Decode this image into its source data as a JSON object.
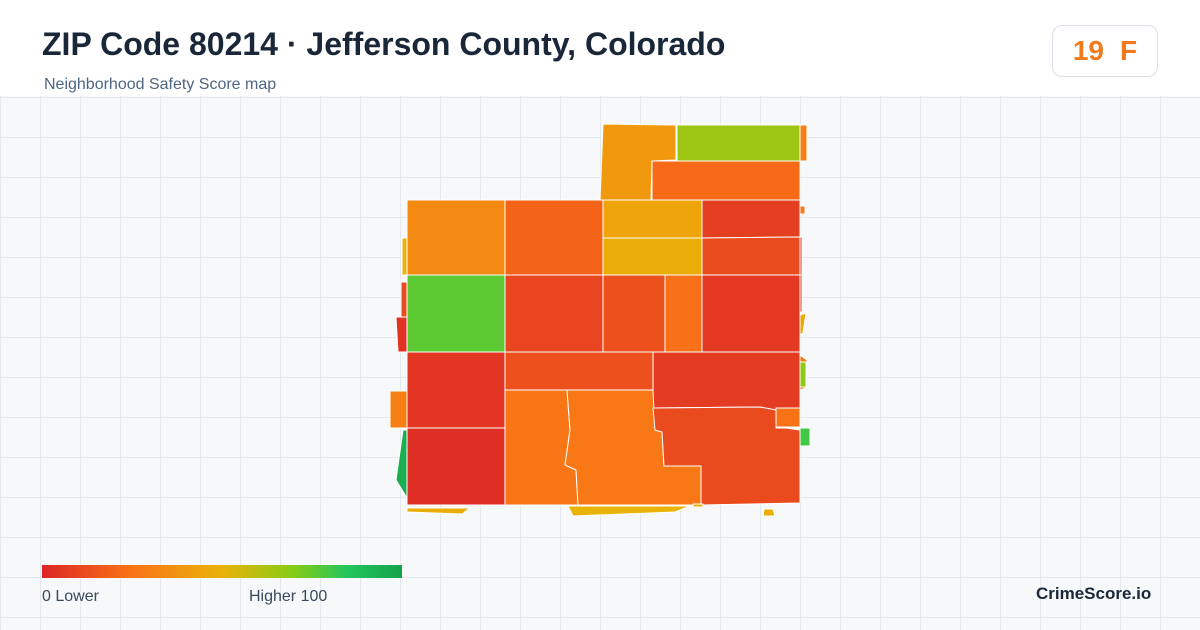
{
  "header": {
    "title": "ZIP Code 80214 · Jefferson County, Colorado",
    "subtitle": "Neighborhood Safety Score map"
  },
  "score_badge": {
    "score": "19",
    "grade": "F",
    "color": "#f07a1c"
  },
  "map": {
    "tiles": [
      {
        "id": "n1",
        "score": 40
      },
      {
        "id": "n2",
        "score": 65
      },
      {
        "id": "n3",
        "score": 22
      },
      {
        "id": "n4",
        "score": 34
      },
      {
        "id": "n5",
        "score": 20
      },
      {
        "id": "n6",
        "score": 44
      },
      {
        "id": "n7",
        "score": 8
      },
      {
        "id": "n8",
        "score": 48
      },
      {
        "id": "n9",
        "score": 12
      },
      {
        "id": "n10",
        "score": 76
      },
      {
        "id": "n11",
        "score": 10
      },
      {
        "id": "n12",
        "score": 14
      },
      {
        "id": "n13",
        "score": 24
      },
      {
        "id": "n14",
        "score": 6
      },
      {
        "id": "n15",
        "score": 5
      },
      {
        "id": "n16",
        "score": 14
      },
      {
        "id": "n17",
        "score": 7
      },
      {
        "id": "n18",
        "score": 3
      },
      {
        "id": "n19",
        "score": 26
      },
      {
        "id": "n20",
        "score": 27
      },
      {
        "id": "n21",
        "score": 12
      },
      {
        "id": "n22",
        "score": 4
      },
      {
        "id": "n23",
        "score": 25
      },
      {
        "id": "n24",
        "score": 12
      },
      {
        "id": "f1",
        "score": 30
      },
      {
        "id": "f2",
        "score": 30
      },
      {
        "id": "f3",
        "score": 50
      },
      {
        "id": "f4",
        "score": 5
      },
      {
        "id": "f5",
        "score": 5
      },
      {
        "id": "f6",
        "score": 28
      },
      {
        "id": "f7",
        "score": 95
      },
      {
        "id": "f8",
        "score": 48
      },
      {
        "id": "f9",
        "score": 50
      },
      {
        "id": "f10",
        "score": 48
      },
      {
        "id": "f11",
        "score": 80
      },
      {
        "id": "f12",
        "score": 28
      },
      {
        "id": "f13",
        "score": 68
      },
      {
        "id": "f14",
        "score": 46
      },
      {
        "id": "f15",
        "score": 48
      }
    ]
  },
  "legend": {
    "min_label": "0  Lower",
    "max_label": "Higher  100",
    "stops": [
      "#dc2626",
      "#f97316",
      "#eab308",
      "#84cc16",
      "#22c55e",
      "#16a34a"
    ]
  },
  "brand": "CrimeScore.io"
}
